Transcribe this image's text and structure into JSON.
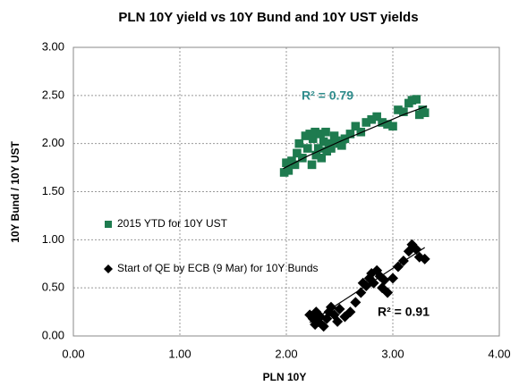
{
  "chart_data": {
    "type": "scatter",
    "title": "PLN 10Y yield vs 10Y Bund and 10Y UST  yields",
    "x_label": "PLN 10Y",
    "y_label": "10Y Bund / 10Y UST",
    "xlim": [
      0,
      4
    ],
    "ylim": [
      0,
      3
    ],
    "xticks": [
      {
        "value": 0,
        "label": "0.00"
      },
      {
        "value": 1,
        "label": "1.00"
      },
      {
        "value": 2,
        "label": "2.00"
      },
      {
        "value": 3,
        "label": "3.00"
      },
      {
        "value": 4,
        "label": "4.00"
      }
    ],
    "yticks": [
      {
        "value": 0,
        "label": "0.00"
      },
      {
        "value": 0.5,
        "label": "0.50"
      },
      {
        "value": 1,
        "label": "1.00"
      },
      {
        "value": 1.5,
        "label": "1.50"
      },
      {
        "value": 2,
        "label": "2.00"
      },
      {
        "value": 2.5,
        "label": "2.50"
      },
      {
        "value": 3,
        "label": "3.00"
      }
    ],
    "grid": true,
    "series": [
      {
        "name": "2015 YTD for 10Y UST",
        "color": "#1e7b4f",
        "marker": "square",
        "x": [
          1.98,
          2.0,
          2.02,
          2.05,
          2.08,
          2.1,
          2.12,
          2.15,
          2.18,
          2.2,
          2.22,
          2.24,
          2.25,
          2.27,
          2.28,
          2.3,
          2.32,
          2.33,
          2.35,
          2.37,
          2.38,
          2.4,
          2.42,
          2.45,
          2.47,
          2.5,
          2.52,
          2.55,
          2.6,
          2.65,
          2.7,
          2.75,
          2.8,
          2.85,
          2.9,
          2.95,
          3.0,
          3.05,
          3.1,
          3.15,
          3.18,
          3.22,
          3.25,
          3.28,
          3.3
        ],
        "values": [
          1.7,
          1.8,
          1.72,
          1.82,
          1.78,
          1.9,
          2.0,
          1.85,
          2.08,
          1.95,
          2.1,
          1.78,
          2.05,
          2.12,
          1.88,
          1.95,
          2.1,
          1.85,
          2.02,
          2.12,
          1.92,
          2.0,
          1.95,
          2.08,
          2.03,
          2.0,
          1.98,
          2.05,
          2.1,
          2.18,
          2.12,
          2.22,
          2.25,
          2.28,
          2.22,
          2.2,
          2.18,
          2.35,
          2.33,
          2.42,
          2.45,
          2.46,
          2.3,
          2.35,
          2.32
        ]
      },
      {
        "name": "Start of QE by ECB (9 Mar) for 10Y Bunds",
        "color": "#000000",
        "marker": "diamond",
        "x": [
          2.22,
          2.25,
          2.27,
          2.28,
          2.3,
          2.32,
          2.35,
          2.38,
          2.4,
          2.42,
          2.45,
          2.48,
          2.5,
          2.55,
          2.6,
          2.65,
          2.7,
          2.72,
          2.75,
          2.78,
          2.8,
          2.82,
          2.85,
          2.88,
          2.9,
          2.92,
          2.95,
          3.0,
          3.05,
          3.1,
          3.15,
          3.18,
          3.22,
          3.25,
          3.3
        ],
        "values": [
          0.22,
          0.18,
          0.12,
          0.25,
          0.15,
          0.2,
          0.1,
          0.18,
          0.25,
          0.3,
          0.22,
          0.15,
          0.28,
          0.2,
          0.25,
          0.35,
          0.45,
          0.55,
          0.52,
          0.6,
          0.65,
          0.55,
          0.68,
          0.62,
          0.5,
          0.58,
          0.45,
          0.6,
          0.72,
          0.78,
          0.88,
          0.95,
          0.9,
          0.82,
          0.8
        ]
      }
    ],
    "trendlines": [
      {
        "color": "#000000",
        "x": [
          1.97,
          2.2,
          2.5,
          2.8,
          3.1,
          3.32
        ],
        "values": [
          1.74,
          1.87,
          2.02,
          2.16,
          2.3,
          2.39
        ]
      },
      {
        "color": "#000000",
        "x": [
          2.22,
          3.3
        ],
        "values": [
          0.14,
          0.92
        ]
      }
    ],
    "annotations": [
      {
        "text": "R² = 0.79",
        "color": "#2e8b8b"
      },
      {
        "text": "R² = 0.91",
        "color": "#000000"
      }
    ]
  }
}
